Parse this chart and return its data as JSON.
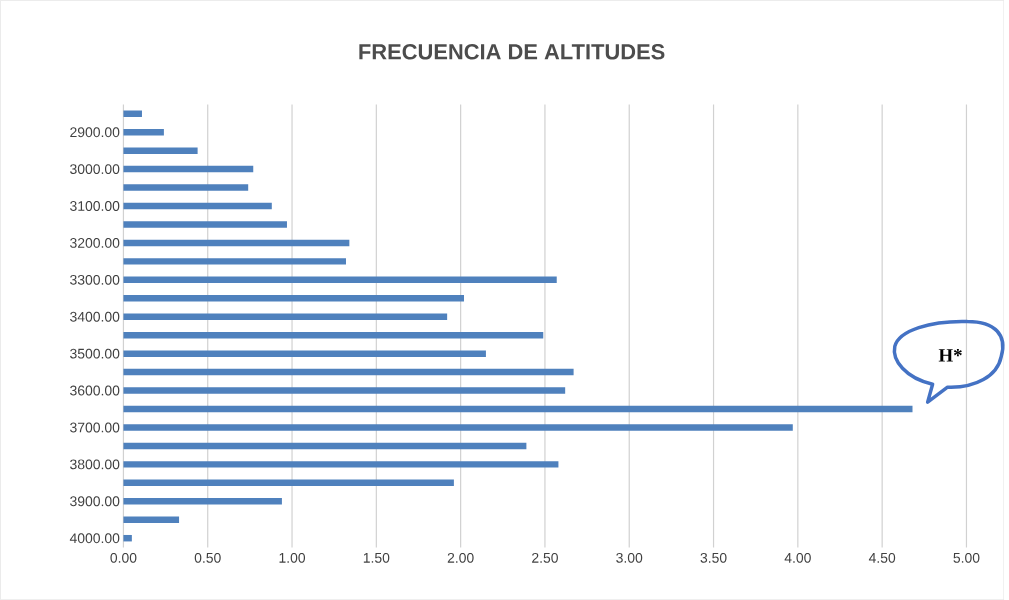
{
  "chart_data": {
    "type": "bar",
    "orientation": "horizontal",
    "title": "FRECUENCIA DE ALTITUDES",
    "categories": [
      null,
      "2900.00",
      null,
      "3000.00",
      null,
      "3100.00",
      null,
      "3200.00",
      null,
      "3300.00",
      null,
      "3400.00",
      null,
      "3500.00",
      null,
      "3600.00",
      null,
      "3700.00",
      null,
      "3800.00",
      null,
      "3900.00",
      null,
      "4000.00"
    ],
    "values": [
      0.11,
      0.24,
      0.44,
      0.77,
      0.74,
      0.88,
      0.97,
      1.34,
      1.32,
      2.57,
      2.02,
      1.92,
      2.49,
      2.15,
      2.67,
      2.62,
      4.68,
      3.97,
      2.39,
      2.58,
      1.96,
      0.94,
      0.33,
      0.05
    ],
    "color": "#4f81bd",
    "xlim": [
      0,
      5
    ],
    "xticks": [
      {
        "value": 0,
        "label": "0.00"
      },
      {
        "value": 0.5,
        "label": "0.50"
      },
      {
        "value": 1,
        "label": "1.00"
      },
      {
        "value": 1.5,
        "label": "1.50"
      },
      {
        "value": 2,
        "label": "2.00"
      },
      {
        "value": 2.5,
        "label": "2.50"
      },
      {
        "value": 3,
        "label": "3.00"
      },
      {
        "value": 3.5,
        "label": "3.50"
      },
      {
        "value": 4,
        "label": "4.00"
      },
      {
        "value": 4.5,
        "label": "4.50"
      },
      {
        "value": 5,
        "label": "5.00"
      }
    ],
    "grid": "x",
    "annotations": [
      "H*"
    ]
  }
}
